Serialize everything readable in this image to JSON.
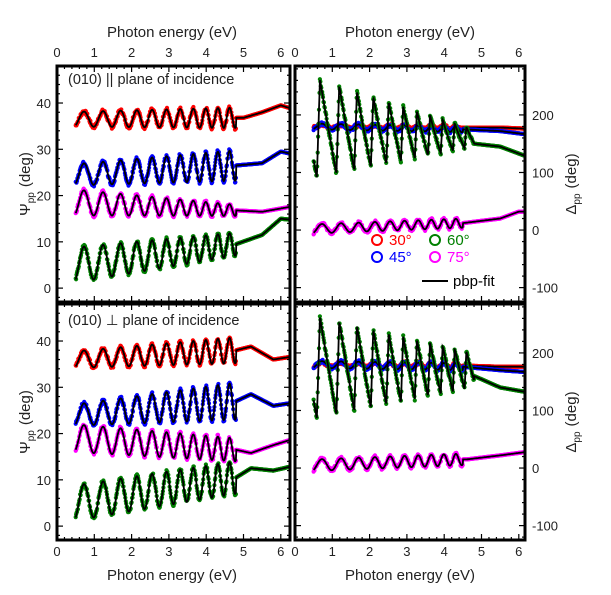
{
  "chart_data": [
    {
      "id": "psi-parallel",
      "type": "scatter",
      "panel": "top-left",
      "annotation": "(010) || plane of incidence",
      "xlabel": "Photon energy (eV)",
      "xlabel_position": "top",
      "ylabel_main": "Ψ",
      "ylabel_sub": "pp",
      "ylabel_unit": "(deg)",
      "xlim": [
        0,
        6.9
      ],
      "ylim": [
        -3,
        48
      ],
      "xticks": [
        "0",
        "1",
        "2",
        "3",
        "4",
        "5",
        "6"
      ],
      "yticks": [
        "0",
        "10",
        "20",
        "30",
        "40"
      ],
      "series": [
        {
          "name": "30°",
          "color": "#ff0000",
          "base": 36.5,
          "amp": 1.6,
          "amp_end": 2.2,
          "end_shape": [
            [
              5.0,
              36.8
            ],
            [
              5.5,
              38.0
            ],
            [
              6.0,
              39.5
            ],
            [
              6.6,
              38.0
            ]
          ]
        },
        {
          "name": "45°",
          "color": "#0000ff",
          "base": 24.5,
          "amp": 2.3,
          "amp_end": 3.3,
          "end_shape": [
            [
              4.8,
              26.5
            ],
            [
              5.5,
              27.0
            ],
            [
              6.0,
              29.5
            ],
            [
              6.6,
              28.5
            ]
          ]
        },
        {
          "name": "75°",
          "color": "#ff00ff",
          "base": 18.5,
          "amp": 2.8,
          "amp_end": 1.2,
          "end_shape": [
            [
              4.8,
              16.8
            ],
            [
              5.5,
              16.5
            ],
            [
              6.2,
              17.5
            ],
            [
              6.6,
              19.5
            ]
          ]
        },
        {
          "name": "60°",
          "color": "#008000",
          "base": 5.0,
          "amp": 3.8,
          "amp_end": 2.5,
          "end_shape": [
            [
              4.8,
              9.5
            ],
            [
              5.5,
              11.5
            ],
            [
              6.0,
              15.0
            ],
            [
              6.6,
              14.5
            ]
          ]
        }
      ]
    },
    {
      "id": "delta-parallel",
      "type": "scatter",
      "panel": "top-right",
      "xlabel": "Photon energy (eV)",
      "xlabel_position": "top",
      "ylabel_main": "Δ",
      "ylabel_sub": "pp",
      "ylabel_unit": "(deg)",
      "ylabel_side": "right",
      "xlim": [
        0,
        6.9
      ],
      "ylim": [
        -125,
        285
      ],
      "xticks": [
        "0",
        "1",
        "2",
        "3",
        "4",
        "5",
        "6"
      ],
      "yticks": [
        "-100",
        "0",
        "100",
        "200"
      ],
      "series": [
        {
          "name": "30°",
          "color": "#ff0000",
          "base": 180,
          "amp": 3,
          "end_shape": [
            [
              4.5,
              178
            ],
            [
              5.5,
              178
            ],
            [
              6.6,
              175
            ]
          ]
        },
        {
          "name": "45°",
          "color": "#0000ff",
          "base": 180,
          "amp": 5,
          "end_shape": [
            [
              4.5,
              175
            ],
            [
              5.5,
              172
            ],
            [
              6.6,
              163
            ]
          ]
        },
        {
          "name": "60°",
          "color": "#008000",
          "base": 180,
          "peak_start": 265,
          "trough_start": 90,
          "peak_end": 175,
          "trough_end": 145,
          "end_shape": [
            [
              4.8,
              150
            ],
            [
              5.5,
              145
            ],
            [
              6.2,
              128
            ],
            [
              6.6,
              127
            ]
          ]
        },
        {
          "name": "75°",
          "color": "#ff00ff",
          "base": 2,
          "amp": 8,
          "end_shape": [
            [
              4.5,
              12
            ],
            [
              5.5,
              20
            ],
            [
              6.0,
              32
            ],
            [
              6.6,
              32
            ]
          ]
        }
      ],
      "legend": {
        "placement": "lower-right",
        "entries": [
          {
            "label": "30°",
            "color": "#ff0000",
            "marker": "circle"
          },
          {
            "label": "60°",
            "color": "#008000",
            "marker": "circle"
          },
          {
            "label": "45°",
            "color": "#0000ff",
            "marker": "circle"
          },
          {
            "label": "75°",
            "color": "#ff00ff",
            "marker": "circle"
          },
          {
            "label": "pbp-fit",
            "color": "#000000",
            "marker": "line"
          }
        ]
      }
    },
    {
      "id": "psi-perpendicular",
      "type": "scatter",
      "panel": "bottom-left",
      "annotation": "(010) ⊥ plane of incidence",
      "xlabel": "Photon energy (eV)",
      "xlabel_position": "bottom",
      "ylabel_main": "Ψ",
      "ylabel_sub": "pp",
      "ylabel_unit": "(deg)",
      "xlim": [
        0,
        6.9
      ],
      "ylim": [
        -3,
        48
      ],
      "xticks": [
        "0",
        "1",
        "2",
        "3",
        "4",
        "5",
        "6"
      ],
      "yticks": [
        "0",
        "10",
        "20",
        "30",
        "40"
      ],
      "series": [
        {
          "name": "30°",
          "color": "#ff0000",
          "base": 36.0,
          "amp": 1.8,
          "amp_end": 2.8,
          "end_shape": [
            [
              4.8,
              38.0
            ],
            [
              5.2,
              38.8
            ],
            [
              5.8,
              36.0
            ],
            [
              6.6,
              37.0
            ]
          ]
        },
        {
          "name": "45°",
          "color": "#0000ff",
          "base": 24.0,
          "amp": 2.3,
          "amp_end": 4.0,
          "end_shape": [
            [
              4.8,
              27.0
            ],
            [
              5.2,
              28.5
            ],
            [
              5.8,
              26.0
            ],
            [
              6.6,
              27.0
            ]
          ]
        },
        {
          "name": "75°",
          "color": "#ff00ff",
          "base": 19.0,
          "amp": 3.0,
          "amp_end": 2.5,
          "end_shape": [
            [
              4.8,
              16.5
            ],
            [
              5.2,
              15.8
            ],
            [
              5.8,
              17.5
            ],
            [
              6.6,
              19.5
            ]
          ]
        },
        {
          "name": "60°",
          "color": "#008000",
          "base": 5.0,
          "amp": 3.8,
          "amp_end": 3.5,
          "end_shape": [
            [
              4.8,
              10.5
            ],
            [
              5.2,
              12.5
            ],
            [
              5.8,
              12.0
            ],
            [
              6.6,
              13.5
            ]
          ]
        }
      ]
    },
    {
      "id": "delta-perpendicular",
      "type": "scatter",
      "panel": "bottom-right",
      "xlabel": "Photon energy (eV)",
      "xlabel_position": "bottom",
      "ylabel_main": "Δ",
      "ylabel_sub": "pp",
      "ylabel_unit": "(deg)",
      "ylabel_side": "right",
      "xlim": [
        0,
        6.9
      ],
      "ylim": [
        -125,
        285
      ],
      "xticks": [
        "0",
        "1",
        "2",
        "3",
        "4",
        "5",
        "6"
      ],
      "yticks": [
        "-100",
        "0",
        "100",
        "200"
      ],
      "series": [
        {
          "name": "30°",
          "color": "#ff0000",
          "base": 180,
          "amp": 4,
          "end_shape": [
            [
              4.5,
              178
            ],
            [
              5.5,
              176
            ],
            [
              6.6,
              176
            ]
          ]
        },
        {
          "name": "45°",
          "color": "#0000ff",
          "base": 180,
          "amp": 6,
          "end_shape": [
            [
              4.5,
              176
            ],
            [
              5.5,
              170
            ],
            [
              6.6,
              165
            ]
          ]
        },
        {
          "name": "60°",
          "color": "#008000",
          "base": 180,
          "peak_start": 265,
          "trough_start": 85,
          "peak_end": 200,
          "trough_end": 140,
          "end_shape": [
            [
              4.8,
              160
            ],
            [
              5.5,
              140
            ],
            [
              6.2,
              132
            ],
            [
              6.6,
              126
            ]
          ]
        },
        {
          "name": "75°",
          "color": "#ff00ff",
          "base": 5,
          "amp": 10,
          "end_shape": [
            [
              4.6,
              15
            ],
            [
              5.5,
              22
            ],
            [
              6.2,
              28
            ],
            [
              6.6,
              30
            ]
          ]
        }
      ]
    }
  ],
  "fit_label": "pbp-fit"
}
